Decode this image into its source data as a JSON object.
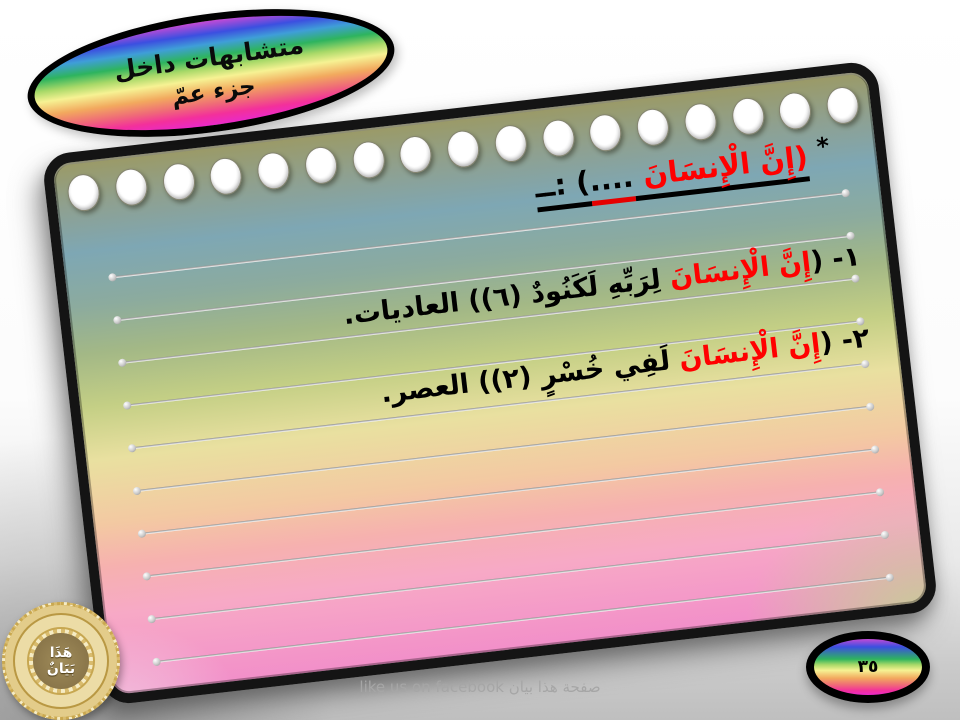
{
  "slide": {
    "badge": {
      "line1": "متشابهات داخل",
      "line2": "جزء عمّ"
    },
    "page_number": "٣٥",
    "footer": "like us on facebook صفحة هذا بيان",
    "seal": {
      "line1": "هَذَا",
      "line2": "بَيَانٌ"
    }
  },
  "note": {
    "title": {
      "marker": "*",
      "quote": "(إِنَّ الْإِنسَانَ ",
      "dots": "....",
      "tail": ") :ــ"
    },
    "items": [
      {
        "prefix": "١- (",
        "highlight": "إِنَّ الْإِنسَانَ ",
        "rest": "لِرَبِّهِ لَكَنُودٌ (٦)) العاديات."
      },
      {
        "prefix": "٢- (",
        "highlight": "إِنَّ الْإِنسَانَ ",
        "rest": "لَفِي خُسْرٍ (٢)) العصر."
      }
    ],
    "ruled_line_count": 10,
    "ring_count": 17
  },
  "colors": {
    "highlight_red": "#ff0000",
    "page_border": "#141414"
  }
}
